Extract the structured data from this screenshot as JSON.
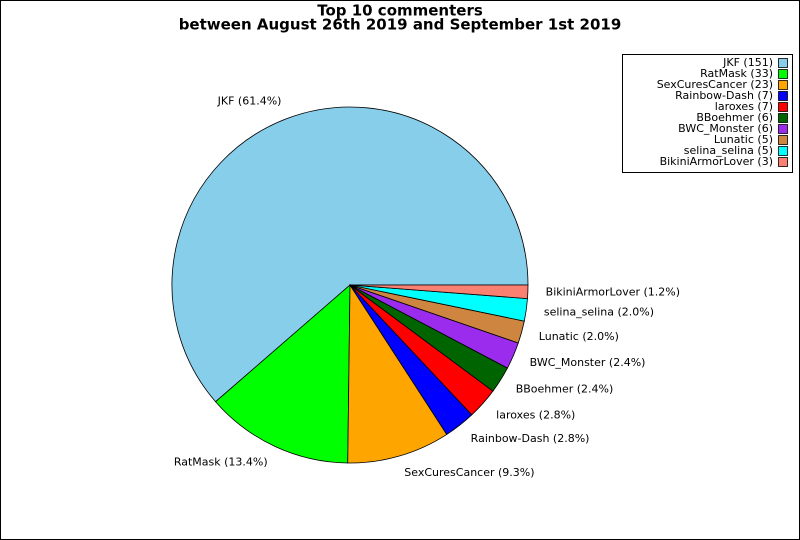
{
  "chart_data": {
    "type": "pie",
    "title": "Top 10 commenters",
    "subtitle": "between August 26th 2019 and September 1st 2019",
    "categories": [
      "JKF",
      "RatMask",
      "SexCuresCancer",
      "Rainbow-Dash",
      "laroxes",
      "BBoehmer",
      "BWC_Monster",
      "Lunatic",
      "selina_selina",
      "BikiniArmorLover"
    ],
    "values": [
      151,
      33,
      23,
      7,
      7,
      6,
      6,
      5,
      5,
      3
    ],
    "slice_labels": [
      "JKF (61.4%)",
      "RatMask (13.4%)",
      "SexCuresCancer (9.3%)",
      "Rainbow-Dash (2.8%)",
      "laroxes (2.8%)",
      "BBoehmer (2.4%)",
      "BWC_Monster (2.4%)",
      "Lunatic (2.0%)",
      "selina_selina (2.0%)",
      "BikiniArmorLover (1.2%)"
    ],
    "legend_labels": [
      "JKF (151)",
      "RatMask (33)",
      "SexCuresCancer (23)",
      "Rainbow-Dash (7)",
      "laroxes (7)",
      "BBoehmer (6)",
      "BWC_Monster (6)",
      "Lunatic (5)",
      "selina_selina (5)",
      "BikiniArmorLover (3)"
    ],
    "colors": [
      "#87ceeb",
      "#00ff00",
      "#ffa500",
      "#0000ff",
      "#ff0000",
      "#006400",
      "#9b2cee",
      "#cd853f",
      "#00ffff",
      "#fa8072"
    ],
    "legend": "upper right"
  }
}
